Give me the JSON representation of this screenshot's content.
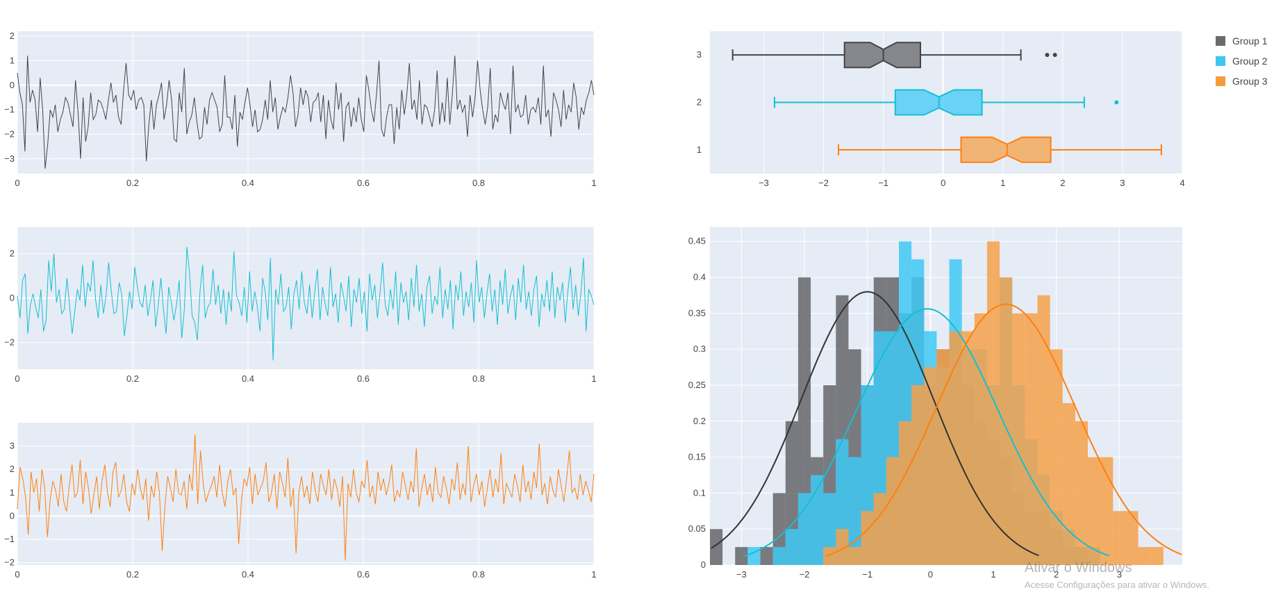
{
  "colors": {
    "panel_bg": "#e5ecf6",
    "grid": "#ffffff",
    "group1": "#444444",
    "group2": "#17becf",
    "group3": "#ff7f0e",
    "group1_fill": "#66666a",
    "group2_fill": "#3fc9f5",
    "group3_fill": "#f6a14a"
  },
  "legend": {
    "items": [
      {
        "name": "Group 1",
        "color": "#6b6b6b"
      },
      {
        "name": "Group 2",
        "color": "#3ec6f3"
      },
      {
        "name": "Group 3",
        "color": "#f59b3d"
      }
    ]
  },
  "watermark": {
    "title": "Ativar o Windows",
    "subtitle": "Acesse Configurações para ativar o Windows."
  },
  "chart_data": [
    {
      "type": "line",
      "panel": "timeseries-1",
      "series_name": "Group 1",
      "x_range": [
        0,
        1
      ],
      "ylim": [
        -3.6,
        2.2
      ],
      "xticks": [
        0,
        0.2,
        0.4,
        0.6,
        0.8,
        1
      ],
      "yticks": [
        -3,
        -2,
        -1,
        0,
        1,
        2
      ],
      "xtick_labels": [
        "0",
        "0.2",
        "0.4",
        "0.6",
        "0.8",
        "1"
      ],
      "ytick_labels": [
        "−3",
        "−2",
        "−1",
        "0",
        "1",
        "2"
      ],
      "y": [
        0.5,
        -0.3,
        -0.8,
        -2.7,
        1.2,
        -0.7,
        -0.2,
        -0.6,
        -1.9,
        0.3,
        -1.0,
        -3.4,
        -2.4,
        -1.0,
        -1.3,
        -0.8,
        -1.9,
        -1.4,
        -1.1,
        -0.5,
        -0.7,
        -1.2,
        -1.7,
        0.2,
        -1.1,
        -3.0,
        -0.5,
        -2.3,
        -1.7,
        -0.3,
        -1.4,
        -1.2,
        -0.6,
        -0.7,
        -1.0,
        -1.4,
        -0.6,
        0.1,
        -0.7,
        -0.4,
        -1.3,
        -1.6,
        -0.2,
        0.9,
        -0.4,
        -0.6,
        -0.2,
        -1.0,
        -0.6,
        -0.5,
        -0.8,
        -3.1,
        -1.6,
        -0.6,
        -1.8,
        -0.8,
        -0.4,
        0.1,
        -1.4,
        -0.8,
        0.2,
        -0.6,
        -2.2,
        -2.3,
        -0.3,
        -1.1,
        0.7,
        -2.0,
        -1.5,
        -1.2,
        -0.5,
        -1.5,
        -2.2,
        -2.1,
        -0.9,
        -1.6,
        -0.6,
        -0.3,
        -0.6,
        -0.9,
        -1.9,
        -1.6,
        0.4,
        -1.3,
        -1.3,
        -1.8,
        -0.4,
        -2.5,
        -1.1,
        -1.4,
        -0.7,
        -0.1,
        -0.8,
        -1.7,
        -1.0,
        -1.9,
        -1.8,
        -1.4,
        -0.6,
        -1.4,
        0.2,
        -1.1,
        -0.5,
        -1.8,
        -1.3,
        -0.9,
        -1.1,
        -0.5,
        0.4,
        -0.3,
        -1.7,
        -1.2,
        -0.1,
        -0.8,
        -0.2,
        -0.5,
        -1.5,
        -0.7,
        -0.6,
        -0.3,
        -1.5,
        -0.4,
        -2.2,
        -0.6,
        -1.4,
        -1.8,
        0.1,
        -1.0,
        -0.3,
        -2.3,
        -0.9,
        -0.7,
        -1.7,
        -0.9,
        -1.5,
        -0.5,
        -1.4,
        -1.9,
        0.4,
        -0.2,
        -1.0,
        -1.5,
        -0.4,
        1.0,
        -1.8,
        -2.1,
        -1.3,
        -0.8,
        -0.8,
        -2.4,
        -0.9,
        -1.8,
        -0.2,
        -1.2,
        -0.4,
        0.9,
        -1.0,
        -0.6,
        -1.4,
        0.2,
        -1.6,
        -0.8,
        -0.9,
        -1.3,
        -1.7,
        -1.0,
        0.6,
        -1.6,
        -0.7,
        -1.5,
        0.3,
        -1.6,
        -0.4,
        1.2,
        -1.0,
        -0.6,
        -1.1,
        -0.8,
        -2.1,
        -0.4,
        -1.3,
        -0.5,
        1.0,
        -0.2,
        -1.0,
        -1.6,
        -0.9,
        0.7,
        -1.8,
        -1.2,
        -1.5,
        -0.3,
        -0.7,
        -1.0,
        -0.3,
        -2.0,
        0.8,
        -1.1,
        -0.8,
        -1.3,
        -1.2,
        -0.4,
        -1.6,
        -1.0,
        -0.9,
        -1.1,
        -0.5,
        -1.6,
        0.8,
        -1.3,
        -1.0,
        -2.1,
        -0.3,
        -0.6,
        -1.0,
        -1.7,
        -0.2,
        -1.4,
        -0.8,
        -1.1,
        0.1,
        -0.5,
        -1.8,
        -0.9,
        -1.2,
        -0.6,
        -0.3,
        0.2,
        -0.4
      ]
    },
    {
      "type": "line",
      "panel": "timeseries-2",
      "series_name": "Group 2",
      "x_range": [
        0,
        1
      ],
      "ylim": [
        -3.2,
        3.2
      ],
      "xticks": [
        0,
        0.2,
        0.4,
        0.6,
        0.8,
        1
      ],
      "yticks": [
        -2,
        0,
        2
      ],
      "xtick_labels": [
        "0",
        "0.2",
        "0.4",
        "0.6",
        "0.8",
        "1"
      ],
      "ytick_labels": [
        "−2",
        "0",
        "2"
      ],
      "y": [
        0.1,
        -0.9,
        0.8,
        1.1,
        -1.6,
        -0.3,
        0.2,
        -0.4,
        -0.9,
        0.4,
        -1.5,
        -1.0,
        1.7,
        0.3,
        2.0,
        -0.2,
        0.4,
        -0.7,
        -0.5,
        0.9,
        -0.3,
        -1.6,
        -0.6,
        0.4,
        -0.1,
        1.5,
        -0.4,
        0.7,
        0.3,
        1.7,
        -0.1,
        -0.9,
        0.6,
        -0.7,
        0.1,
        1.6,
        0.3,
        -0.7,
        -0.6,
        0.7,
        0.2,
        -1.7,
        -0.8,
        0.3,
        -0.5,
        1.4,
        0.5,
        -0.2,
        -0.4,
        0.6,
        -0.8,
        -0.1,
        0.8,
        -1.3,
        -0.3,
        0.9,
        -0.5,
        -1.6,
        0.5,
        -0.2,
        -1.0,
        -0.3,
        0.8,
        -1.8,
        -0.5,
        2.3,
        1.1,
        -0.8,
        -1.1,
        -1.9,
        0.3,
        1.5,
        -0.9,
        -0.4,
        -0.2,
        1.3,
        -0.3,
        0.6,
        -0.7,
        0.4,
        -1.2,
        0.3,
        -0.6,
        2.1,
        0.1,
        -0.2,
        -0.8,
        0.5,
        -1.1,
        1.2,
        -0.6,
        0.3,
        -0.4,
        -1.5,
        0.9,
        0.3,
        -1.0,
        1.8,
        -2.8,
        0.4,
        -0.3,
        1.1,
        -0.6,
        -0.4,
        0.5,
        -1.4,
        0.2,
        0.8,
        -0.5,
        1.2,
        -0.2,
        -0.7,
        0.6,
        -0.9,
        0.3,
        1.3,
        -1.0,
        0.5,
        -0.3,
        -0.8,
        1.4,
        -0.4,
        0.2,
        -1.1,
        0.7,
        0.1,
        -0.6,
        1.0,
        -1.3,
        0.4,
        -0.2,
        0.9,
        -0.7,
        0.3,
        -1.5,
        1.1,
        -0.1,
        0.6,
        -0.9,
        0.2,
        1.6,
        -0.3,
        -0.8,
        0.4,
        -0.5,
        1.2,
        -1.2,
        0.7,
        -0.2,
        0.3,
        -1.0,
        0.9,
        -0.4,
        1.5,
        -0.6,
        0.2,
        -1.3,
        0.5,
        1.0,
        -0.7,
        0.1,
        -0.3,
        1.4,
        -0.9,
        0.4,
        -0.5,
        0.8,
        -1.4,
        0.6,
        -0.1,
        1.2,
        -0.8,
        0.3,
        -0.4,
        0.7,
        -1.1,
        1.7,
        -0.2,
        0.5,
        -0.9,
        0.2,
        1.1,
        -0.6,
        0.4,
        -1.2,
        0.8,
        -0.3,
        1.3,
        -0.7,
        0.1,
        0.6,
        -1.0,
        0.9,
        -0.2,
        1.5,
        -0.5,
        0.3,
        -0.8,
        0.4,
        1.0,
        -1.3,
        0.2,
        -0.4,
        0.8,
        -0.6,
        1.2,
        -0.9,
        0.5,
        -0.1,
        0.7,
        -1.1,
        0.3,
        1.4,
        -0.5,
        0.6,
        -0.8,
        0.2,
        1.8,
        -1.5,
        0.4,
        0.1,
        -0.3
      ]
    },
    {
      "type": "line",
      "panel": "timeseries-3",
      "series_name": "Group 3",
      "x_range": [
        0,
        1
      ],
      "ylim": [
        -2.1,
        4.0
      ],
      "xticks": [
        0,
        0.2,
        0.4,
        0.6,
        0.8,
        1
      ],
      "yticks": [
        -2,
        -1,
        0,
        1,
        2,
        3
      ],
      "xtick_labels": [
        "0",
        "0.2",
        "0.4",
        "0.6",
        "0.8",
        "1"
      ],
      "ytick_labels": [
        "−2",
        "−1",
        "0",
        "1",
        "2",
        "3"
      ],
      "y": [
        0.3,
        2.1,
        1.6,
        0.8,
        -0.8,
        1.9,
        1.0,
        1.6,
        0.2,
        2.0,
        1.2,
        -0.9,
        0.7,
        1.5,
        1.1,
        0.4,
        1.8,
        0.6,
        0.2,
        1.3,
        2.2,
        0.8,
        1.0,
        2.4,
        0.5,
        1.9,
        1.2,
        0.1,
        0.9,
        1.7,
        0.3,
        1.5,
        2.2,
        1.0,
        0.4,
        1.9,
        2.3,
        0.8,
        1.1,
        1.8,
        0.6,
        0.2,
        1.4,
        0.9,
        2.0,
        1.2,
        0.7,
        1.6,
        -0.2,
        1.3,
        0.8,
        1.9,
        1.0,
        -1.5,
        0.4,
        1.7,
        1.2,
        0.6,
        2.0,
        1.0,
        0.9,
        1.5,
        0.3,
        1.8,
        1.1,
        3.5,
        0.5,
        2.8,
        1.4,
        0.6,
        1.0,
        1.3,
        1.7,
        0.8,
        2.2,
        1.0,
        0.4,
        1.5,
        2.0,
        0.9,
        1.2,
        -1.2,
        0.7,
        1.6,
        1.3,
        2.1,
        0.5,
        1.8,
        0.9,
        1.2,
        1.5,
        2.3,
        0.6,
        1.0,
        1.8,
        0.3,
        1.9,
        1.4,
        0.8,
        2.5,
        0.4,
        1.2,
        -1.6,
        1.0,
        1.7,
        0.8,
        1.3,
        0.5,
        1.9,
        1.1,
        0.6,
        1.8,
        1.3,
        0.9,
        2.0,
        0.7,
        1.6,
        1.2,
        0.4,
        1.7,
        -1.9,
        1.4,
        0.8,
        2.0,
        1.0,
        0.6,
        1.5,
        1.2,
        2.4,
        0.8,
        1.3,
        0.5,
        1.9,
        1.1,
        1.6,
        0.9,
        1.4,
        2.2,
        0.6,
        1.1,
        0.8,
        1.9,
        1.3,
        0.7,
        1.5,
        1.0,
        2.9,
        0.4,
        1.2,
        1.8,
        0.9,
        1.4,
        0.6,
        2.1,
        1.0,
        0.8,
        1.7,
        1.2,
        0.5,
        1.6,
        1.1,
        2.3,
        0.7,
        1.4,
        0.9,
        3.0,
        0.6,
        1.3,
        1.8,
        0.9,
        1.5,
        0.4,
        1.2,
        2.0,
        0.8,
        1.6,
        1.0,
        2.7,
        0.5,
        1.4,
        1.1,
        0.8,
        1.8,
        1.3,
        0.6,
        2.2,
        1.0,
        1.5,
        0.7,
        1.9,
        1.2,
        3.1,
        0.9,
        1.4,
        0.5,
        1.7,
        1.1,
        0.8,
        2.0,
        1.3,
        0.6,
        1.6,
        2.8,
        1.0,
        1.2,
        0.7,
        1.8,
        0.9,
        1.5,
        1.1,
        0.6,
        1.8
      ]
    },
    {
      "type": "box",
      "panel": "boxplot",
      "orientation": "horizontal",
      "x_range": [
        -3.9,
        4.0
      ],
      "xticks": [
        -3,
        -2,
        -1,
        0,
        1,
        2,
        3,
        4
      ],
      "xtick_labels": [
        "−3",
        "−2",
        "−1",
        "0",
        "1",
        "2",
        "3",
        "4"
      ],
      "ytick_labels": [
        "1",
        "2",
        "3"
      ],
      "boxes": [
        {
          "group": "Group 1",
          "category": "3",
          "min": -3.52,
          "q1": -1.65,
          "median": -1.0,
          "q3": -0.38,
          "max": 1.3,
          "notch": [
            -1.22,
            -0.78
          ],
          "outliers": [
            1.74,
            1.87
          ]
        },
        {
          "group": "Group 2",
          "category": "2",
          "min": -2.82,
          "q1": -0.8,
          "median": -0.07,
          "q3": 0.65,
          "max": 2.36,
          "notch": [
            -0.32,
            0.18
          ],
          "outliers": [
            2.9
          ]
        },
        {
          "group": "Group 3",
          "category": "1",
          "min": -1.75,
          "q1": 0.3,
          "median": 1.07,
          "q3": 1.8,
          "max": 3.65,
          "notch": [
            0.82,
            1.32
          ],
          "outliers": []
        }
      ]
    },
    {
      "type": "histogram",
      "panel": "distplot",
      "x_range": [
        -3.5,
        4.0
      ],
      "ylim": [
        0,
        0.47
      ],
      "xticks": [
        -3,
        -2,
        -1,
        0,
        1,
        2,
        3
      ],
      "yticks": [
        0,
        0.05,
        0.1,
        0.15,
        0.2,
        0.25,
        0.3,
        0.35,
        0.4,
        0.45
      ],
      "xtick_labels": [
        "−3",
        "−2",
        "−1",
        "0",
        "1",
        "2",
        "3"
      ],
      "ytick_labels": [
        "0",
        "0.05",
        "0.1",
        "0.15",
        "0.2",
        "0.25",
        "0.3",
        "0.35",
        "0.4",
        "0.45"
      ],
      "bin_width": 0.2,
      "series": [
        {
          "name": "Group 1",
          "bin_start": -3.5,
          "values": [
            0.05,
            0,
            0.025,
            0,
            0.025,
            0.1,
            0.2,
            0.4,
            0.15,
            0.25,
            0.375,
            0.3,
            0.25,
            0.4,
            0.4,
            0.35,
            0.4,
            0.25,
            0.3,
            0.325,
            0.25,
            0.2,
            0.175,
            0.15,
            0.1,
            0.075,
            0.075,
            0.05,
            0.025,
            0.025
          ]
        },
        {
          "name": "Group 2",
          "bin_start": -2.9,
          "values": [
            0.025,
            0,
            0.025,
            0.05,
            0.1,
            0.125,
            0.1,
            0.175,
            0.15,
            0.25,
            0.325,
            0.325,
            0.45,
            0.425,
            0.325,
            0.275,
            0.425,
            0.3,
            0.3,
            0.25,
            0.4,
            0.25,
            0.175,
            0.125,
            0.075,
            0.05,
            0.025,
            0.025
          ]
        },
        {
          "name": "Group 3",
          "bin_start": -1.7,
          "values": [
            0.025,
            0.05,
            0.025,
            0.075,
            0.1,
            0.15,
            0.2,
            0.25,
            0.275,
            0.3,
            0.325,
            0.325,
            0.35,
            0.45,
            0.4,
            0.35,
            0.35,
            0.375,
            0.3,
            0.225,
            0.2,
            0.15,
            0.15,
            0.075,
            0.075,
            0.025,
            0.025
          ]
        }
      ],
      "kde": [
        {
          "name": "Group 1",
          "mean": -1.0,
          "sd": 1.05
        },
        {
          "name": "Group 2",
          "mean": -0.05,
          "sd": 1.12
        },
        {
          "name": "Group 3",
          "mean": 1.2,
          "sd": 1.1
        }
      ]
    }
  ]
}
